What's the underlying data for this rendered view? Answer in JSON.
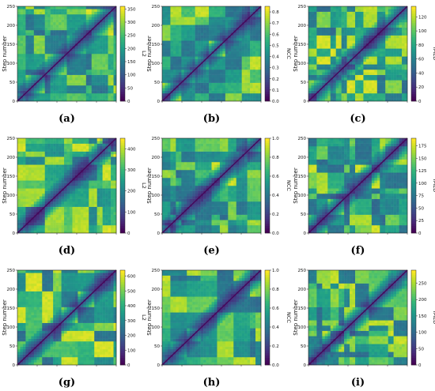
{
  "chart_data": [
    {
      "type": "heatmap",
      "panel": "(a)",
      "ylabel": "Step number",
      "colorbar_label": "L2",
      "xlim": [
        0,
        250
      ],
      "ylim": [
        0,
        250
      ],
      "x_ticks": [],
      "y_ticks": [
        0,
        50,
        100,
        150,
        200,
        250
      ],
      "colorbar_ticks": [
        0,
        50,
        100,
        150,
        200,
        250,
        300,
        350
      ],
      "colorbar_range": [
        0,
        360
      ],
      "colormap": "viridis",
      "diagonal": "low",
      "block_seed": 11
    },
    {
      "type": "heatmap",
      "panel": "(b)",
      "ylabel": "Step number",
      "colorbar_label": "NCC",
      "xlim": [
        0,
        250
      ],
      "ylim": [
        0,
        250
      ],
      "x_ticks": [],
      "y_ticks": [
        0,
        50,
        100,
        150,
        200,
        250
      ],
      "colorbar_ticks": [
        0.0,
        0.1,
        0.2,
        0.3,
        0.4,
        0.5,
        0.6,
        0.7,
        0.8
      ],
      "colorbar_range": [
        0,
        0.85
      ],
      "colormap": "viridis",
      "diagonal": "low",
      "block_seed": 23
    },
    {
      "type": "heatmap",
      "panel": "(c)",
      "ylabel": "Step number",
      "colorbar_label": "IMED",
      "xlim": [
        0,
        250
      ],
      "ylim": [
        0,
        250
      ],
      "x_ticks": [],
      "y_ticks": [
        0,
        50,
        100,
        150,
        200,
        250
      ],
      "colorbar_ticks": [
        0,
        20,
        40,
        60,
        80,
        100,
        120
      ],
      "colorbar_range": [
        0,
        135
      ],
      "colormap": "viridis",
      "diagonal": "low",
      "block_seed": 37
    },
    {
      "type": "heatmap",
      "panel": "(d)",
      "ylabel": "Step number",
      "colorbar_label": "L2",
      "xlim": [
        0,
        250
      ],
      "ylim": [
        0,
        250
      ],
      "x_ticks": [],
      "y_ticks": [
        0,
        50,
        100,
        150,
        200,
        250
      ],
      "colorbar_ticks": [
        0,
        100,
        200,
        300,
        400
      ],
      "colorbar_range": [
        0,
        450
      ],
      "colormap": "viridis",
      "diagonal": "low",
      "block_seed": 41
    },
    {
      "type": "heatmap",
      "panel": "(e)",
      "ylabel": "Step number",
      "colorbar_label": "NCC",
      "xlim": [
        0,
        250
      ],
      "ylim": [
        0,
        250
      ],
      "x_ticks": [],
      "y_ticks": [
        0,
        50,
        100,
        150,
        200,
        250
      ],
      "colorbar_ticks": [
        0.0,
        0.2,
        0.4,
        0.6,
        0.8,
        1.0
      ],
      "colorbar_range": [
        0,
        1.0
      ],
      "colormap": "viridis",
      "diagonal": "low",
      "block_seed": 53
    },
    {
      "type": "heatmap",
      "panel": "(f)",
      "ylabel": "Step number",
      "colorbar_label": "IMED",
      "xlim": [
        0,
        250
      ],
      "ylim": [
        0,
        250
      ],
      "x_ticks": [],
      "y_ticks": [
        0,
        50,
        100,
        150,
        200,
        250
      ],
      "colorbar_ticks": [
        0,
        25,
        50,
        75,
        100,
        125,
        150,
        175
      ],
      "colorbar_range": [
        0,
        190
      ],
      "colormap": "viridis",
      "diagonal": "low",
      "block_seed": 67
    },
    {
      "type": "heatmap",
      "panel": "(g)",
      "ylabel": "Step number",
      "colorbar_label": "L2",
      "xlim": [
        0,
        250
      ],
      "ylim": [
        0,
        250
      ],
      "x_ticks": [],
      "y_ticks": [
        0,
        50,
        100,
        150,
        200,
        250
      ],
      "colorbar_ticks": [
        0,
        100,
        200,
        300,
        400,
        500,
        600
      ],
      "colorbar_range": [
        0,
        640
      ],
      "colormap": "viridis",
      "diagonal": "low",
      "block_seed": 71
    },
    {
      "type": "heatmap",
      "panel": "(h)",
      "ylabel": "Step number",
      "colorbar_label": "NCC",
      "xlim": [
        0,
        250
      ],
      "ylim": [
        0,
        250
      ],
      "x_ticks": [],
      "y_ticks": [
        0,
        50,
        100,
        150,
        200,
        250
      ],
      "colorbar_ticks": [
        0.0,
        0.2,
        0.4,
        0.6,
        0.8,
        1.0
      ],
      "colorbar_range": [
        0,
        1.0
      ],
      "colormap": "viridis",
      "diagonal": "low",
      "block_seed": 83
    },
    {
      "type": "heatmap",
      "panel": "(i)",
      "ylabel": "Step number",
      "colorbar_label": "IMED",
      "xlim": [
        0,
        250
      ],
      "ylim": [
        0,
        250
      ],
      "x_ticks": [],
      "y_ticks": [
        0,
        50,
        100,
        150,
        200,
        250
      ],
      "colorbar_ticks": [
        0,
        50,
        100,
        150,
        200,
        250
      ],
      "colorbar_range": [
        0,
        290
      ],
      "colormap": "viridis",
      "diagonal": "low",
      "block_seed": 97
    }
  ]
}
